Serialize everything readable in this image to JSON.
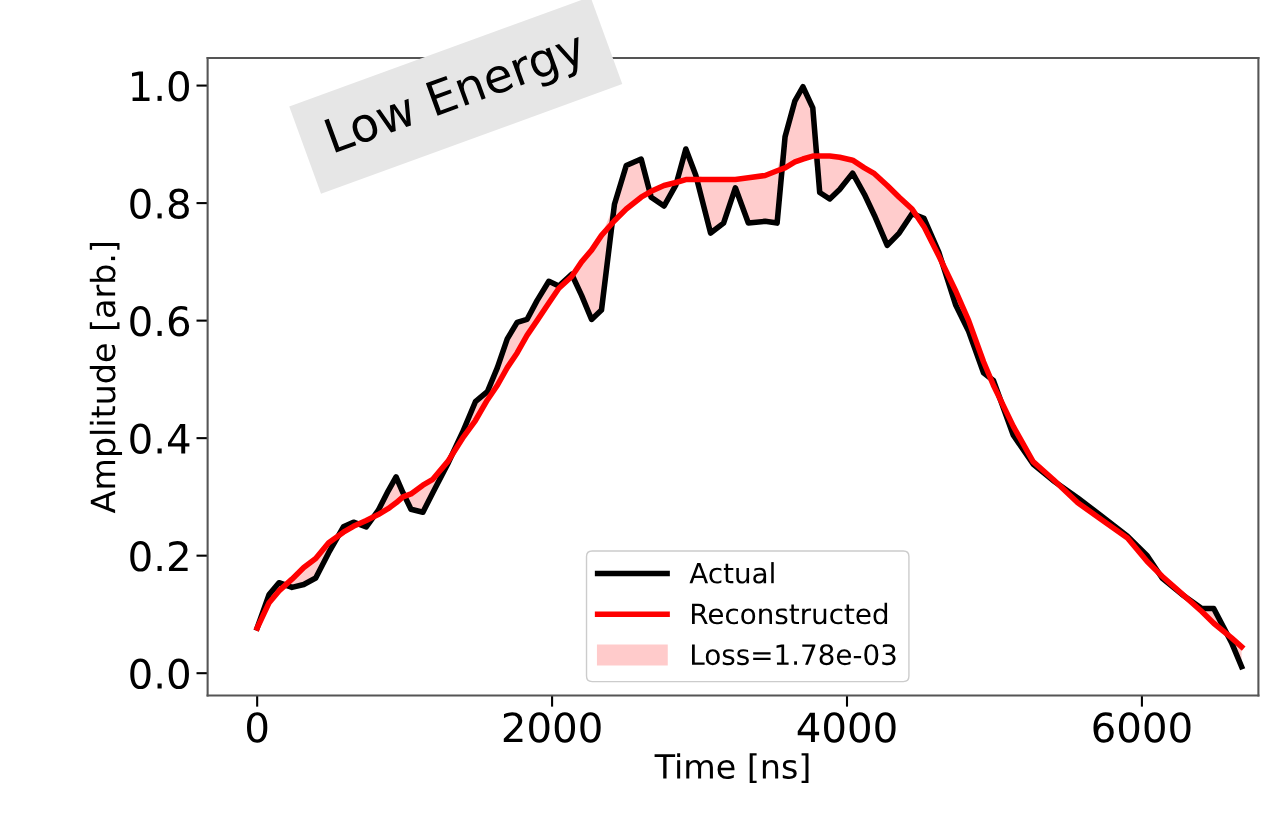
{
  "chart_data": {
    "type": "line",
    "xlabel": "Time [ns]",
    "ylabel": "Amplitude [arb.]",
    "annotations": [
      "Low Energy",
      "Loss=1.78e-03"
    ],
    "x": [
      0,
      81,
      148,
      236,
      316,
      397,
      485,
      585,
      653,
      740,
      821,
      888,
      942,
      989,
      1043,
      1124,
      1191,
      1292,
      1393,
      1480,
      1561,
      1629,
      1696,
      1763,
      1830,
      1898,
      1978,
      2046,
      2133,
      2200,
      2268,
      2335,
      2423,
      2503,
      2604,
      2672,
      2759,
      2840,
      2907,
      2974,
      3075,
      3163,
      3243,
      3331,
      3445,
      3526,
      3580,
      3647,
      3701,
      3768,
      3815,
      3883,
      3950,
      4038,
      4118,
      4186,
      4273,
      4354,
      4441,
      4522,
      4623,
      4738,
      4825,
      4926,
      4993,
      5128,
      5262,
      5397,
      5565,
      5734,
      5902,
      6036,
      6137,
      6272,
      6406,
      6487,
      6608,
      6676
    ],
    "series": [
      {
        "name": "Actual",
        "color": "#000000",
        "values": [
          0.077,
          0.134,
          0.154,
          0.146,
          0.151,
          0.162,
          0.205,
          0.249,
          0.257,
          0.249,
          0.277,
          0.31,
          0.334,
          0.307,
          0.279,
          0.274,
          0.307,
          0.356,
          0.41,
          0.462,
          0.479,
          0.52,
          0.569,
          0.597,
          0.602,
          0.634,
          0.667,
          0.659,
          0.679,
          0.643,
          0.602,
          0.618,
          0.798,
          0.864,
          0.875,
          0.81,
          0.795,
          0.831,
          0.892,
          0.848,
          0.749,
          0.766,
          0.826,
          0.766,
          0.769,
          0.766,
          0.913,
          0.974,
          0.998,
          0.962,
          0.818,
          0.807,
          0.823,
          0.851,
          0.815,
          0.779,
          0.728,
          0.749,
          0.782,
          0.774,
          0.716,
          0.626,
          0.582,
          0.511,
          0.498,
          0.405,
          0.356,
          0.328,
          0.298,
          0.266,
          0.233,
          0.2,
          0.162,
          0.134,
          0.11,
          0.11,
          0.052,
          0.011
        ]
      },
      {
        "name": "Reconstructed",
        "color": "#ff0000",
        "values": [
          0.077,
          0.12,
          0.14,
          0.16,
          0.18,
          0.195,
          0.222,
          0.24,
          0.25,
          0.26,
          0.27,
          0.28,
          0.29,
          0.3,
          0.305,
          0.32,
          0.33,
          0.36,
          0.4,
          0.43,
          0.465,
          0.49,
          0.52,
          0.545,
          0.575,
          0.6,
          0.63,
          0.655,
          0.675,
          0.7,
          0.72,
          0.745,
          0.77,
          0.79,
          0.81,
          0.82,
          0.83,
          0.835,
          0.84,
          0.84,
          0.84,
          0.84,
          0.84,
          0.843,
          0.847,
          0.855,
          0.86,
          0.87,
          0.875,
          0.88,
          0.88,
          0.88,
          0.878,
          0.873,
          0.86,
          0.85,
          0.83,
          0.81,
          0.79,
          0.76,
          0.71,
          0.65,
          0.6,
          0.53,
          0.49,
          0.42,
          0.36,
          0.33,
          0.29,
          0.26,
          0.23,
          0.19,
          0.165,
          0.135,
          0.105,
          0.085,
          0.06,
          0.045
        ],
        "upper": [
          0.077,
          0.134,
          0.154,
          0.16,
          0.18,
          0.195,
          0.222,
          0.249,
          0.257,
          0.26,
          0.277,
          0.31,
          0.334,
          0.307,
          0.305,
          0.32,
          0.33,
          0.36,
          0.41,
          0.462,
          0.479,
          0.52,
          0.569,
          0.597,
          0.602,
          0.634,
          0.667,
          0.659,
          0.679,
          0.7,
          0.72,
          0.745,
          0.798,
          0.864,
          0.875,
          0.82,
          0.83,
          0.835,
          0.892,
          0.848,
          0.84,
          0.84,
          0.84,
          0.843,
          0.847,
          0.855,
          0.913,
          0.974,
          0.998,
          0.962,
          0.88,
          0.88,
          0.878,
          0.873,
          0.86,
          0.85,
          0.83,
          0.81,
          0.79,
          0.774,
          0.716,
          0.65,
          0.6,
          0.53,
          0.498,
          0.42,
          0.36,
          0.33,
          0.298,
          0.266,
          0.233,
          0.2,
          0.165,
          0.135,
          0.11,
          0.11,
          0.06,
          0.045
        ],
        "lower": [
          0.077,
          0.12,
          0.14,
          0.146,
          0.151,
          0.162,
          0.205,
          0.24,
          0.25,
          0.249,
          0.27,
          0.28,
          0.29,
          0.3,
          0.279,
          0.274,
          0.307,
          0.356,
          0.4,
          0.43,
          0.465,
          0.49,
          0.52,
          0.545,
          0.575,
          0.6,
          0.63,
          0.655,
          0.675,
          0.643,
          0.602,
          0.618,
          0.77,
          0.79,
          0.81,
          0.81,
          0.795,
          0.831,
          0.84,
          0.84,
          0.749,
          0.766,
          0.826,
          0.766,
          0.769,
          0.766,
          0.86,
          0.87,
          0.875,
          0.88,
          0.818,
          0.807,
          0.823,
          0.851,
          0.815,
          0.779,
          0.728,
          0.749,
          0.782,
          0.76,
          0.71,
          0.626,
          0.582,
          0.511,
          0.49,
          0.405,
          0.356,
          0.328,
          0.29,
          0.26,
          0.23,
          0.19,
          0.162,
          0.134,
          0.105,
          0.085,
          0.052,
          0.011
        ]
      }
    ],
    "xlim": [
      -336,
      6790
    ],
    "ylim": [
      -0.038,
      1.047
    ],
    "xticks": [
      0,
      2000,
      4000,
      6000
    ],
    "yticks": [
      {
        "value": 0,
        "label": "0.0"
      },
      {
        "value": 0.2,
        "label": "0.2"
      },
      {
        "value": 0.4,
        "label": "0.4"
      },
      {
        "value": 0.6,
        "label": "0.6"
      },
      {
        "value": 0.8,
        "label": "0.8"
      },
      {
        "value": 1.0,
        "label": "1.0"
      }
    ],
    "grid": false,
    "legend": "bottom"
  }
}
